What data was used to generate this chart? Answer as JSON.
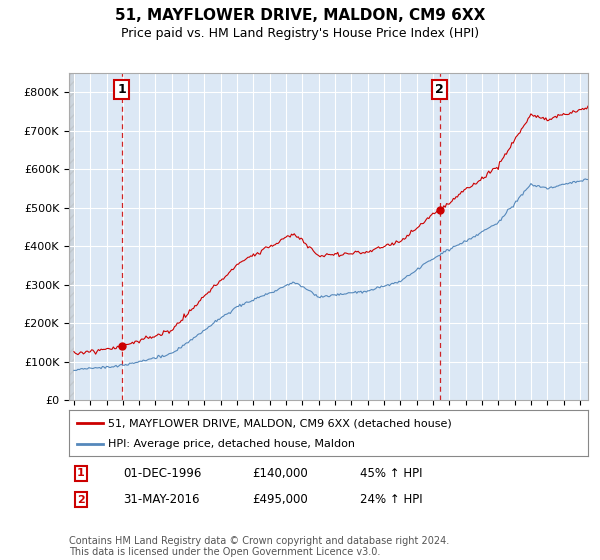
{
  "title": "51, MAYFLOWER DRIVE, MALDON, CM9 6XX",
  "subtitle": "Price paid vs. HM Land Registry's House Price Index (HPI)",
  "ylim": [
    0,
    850000
  ],
  "yticks": [
    0,
    100000,
    200000,
    300000,
    400000,
    500000,
    600000,
    700000,
    800000
  ],
  "ytick_labels": [
    "£0",
    "£100K",
    "£200K",
    "£300K",
    "£400K",
    "£500K",
    "£600K",
    "£700K",
    "£800K"
  ],
  "line1_color": "#cc0000",
  "line2_color": "#5588bb",
  "sale1_x": 1996.917,
  "sale1_y": 140000,
  "sale2_x": 2016.417,
  "sale2_y": 495000,
  "legend_label1": "51, MAYFLOWER DRIVE, MALDON, CM9 6XX (detached house)",
  "legend_label2": "HPI: Average price, detached house, Maldon",
  "table_row1": [
    "1",
    "01-DEC-1996",
    "£140,000",
    "45% ↑ HPI"
  ],
  "table_row2": [
    "2",
    "31-MAY-2016",
    "£495,000",
    "24% ↑ HPI"
  ],
  "footer": "Contains HM Land Registry data © Crown copyright and database right 2024.\nThis data is licensed under the Open Government Licence v3.0.",
  "bg_color": "#ffffff",
  "plot_bg_color": "#dce8f5",
  "grid_color": "#ffffff",
  "title_fontsize": 11,
  "subtitle_fontsize": 9,
  "tick_fontsize": 8,
  "legend_fontsize": 8,
  "footer_fontsize": 7,
  "xlim_left": 1993.7,
  "xlim_right": 2025.5
}
